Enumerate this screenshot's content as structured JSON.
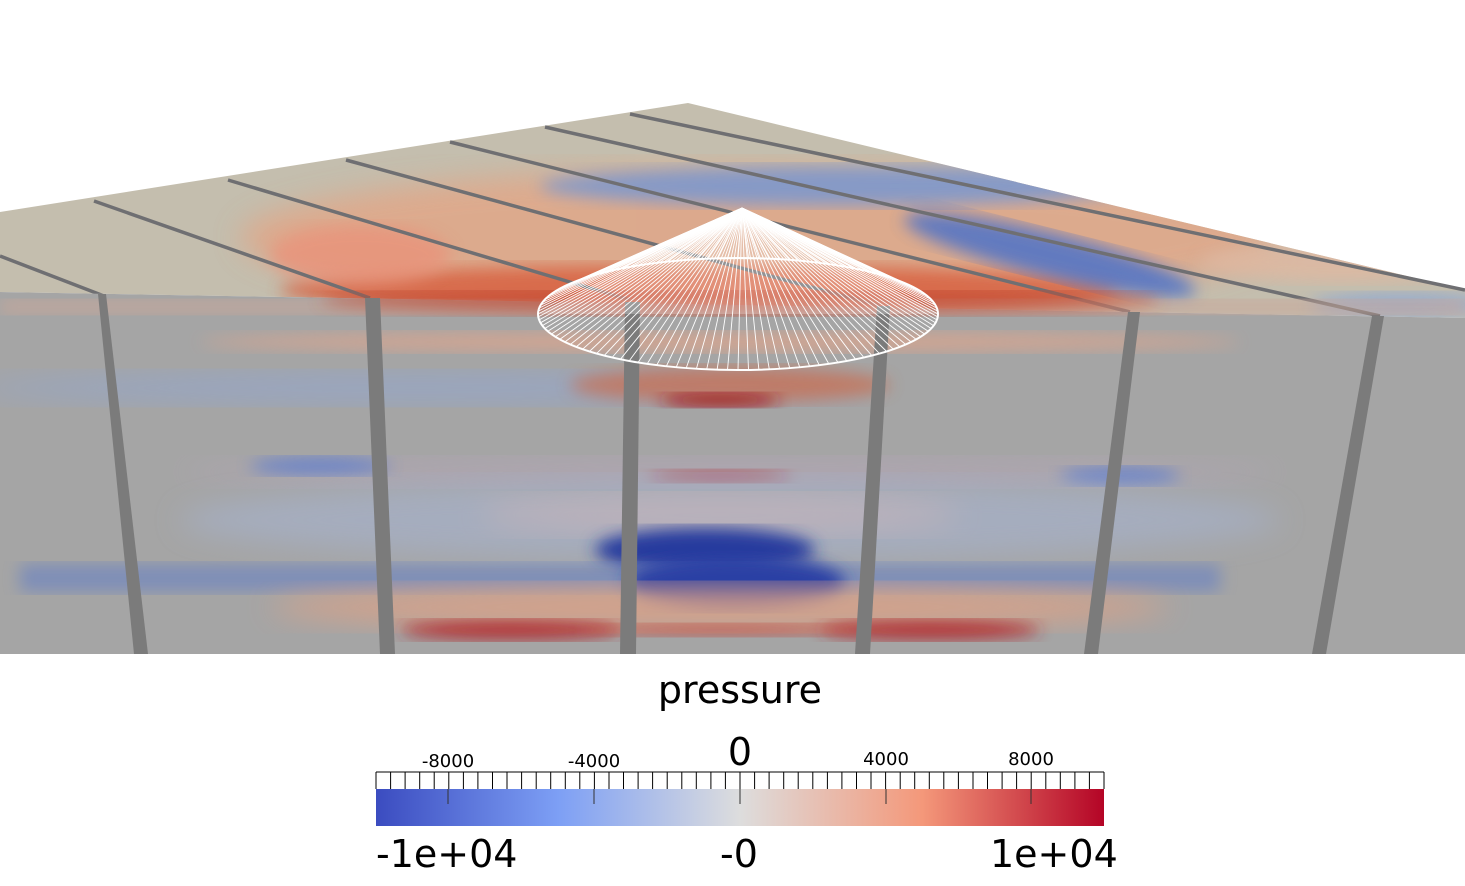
{
  "legend": {
    "title": "pressure",
    "tick_labels": [
      "-8000",
      "-4000",
      "0",
      "4000",
      "8000"
    ],
    "range_min_label": "-1e+04",
    "range_mid_label": "-0",
    "range_max_label": "1e+04"
  },
  "colormap": {
    "name": "cool-warm",
    "low": "#3b4cc0",
    "mid": "#dddddd",
    "high": "#b40426"
  },
  "colors": {
    "slab_side": "#a5a5a5",
    "slab_top": "#c3bfb2",
    "gap": "#7b7b7b",
    "probe_cone": "#ffffff"
  }
}
